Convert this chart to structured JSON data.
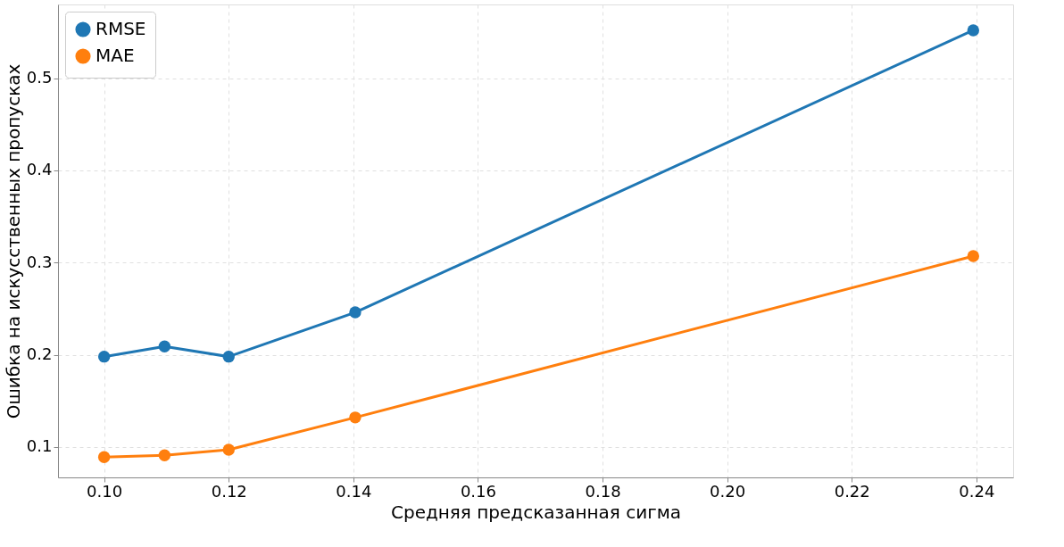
{
  "chart_data": {
    "type": "line",
    "xlabel": "Средняя предсказанная сигма",
    "ylabel": "Ошибка на искусственных пропусках",
    "x": [
      0.1,
      0.1097,
      0.12,
      0.1403,
      0.2395
    ],
    "series": [
      {
        "name": "RMSE",
        "color": "#1f77b4",
        "values": [
          0.198,
          0.209,
          0.198,
          0.246,
          0.552
        ]
      },
      {
        "name": "MAE",
        "color": "#ff7f0e",
        "values": [
          0.089,
          0.091,
          0.097,
          0.132,
          0.307
        ]
      }
    ],
    "xlim": [
      0.0926,
      0.2459
    ],
    "xticks": [
      {
        "value": 0.1,
        "label": "0.10"
      },
      0.12,
      0.14,
      0.16,
      0.18,
      {
        "value": 0.2,
        "label": "0.20"
      },
      0.22,
      0.24
    ],
    "ylim": [
      0.067,
      0.58
    ],
    "yticks": [
      0.1,
      0.2,
      0.3,
      0.4,
      0.5
    ],
    "grid": true,
    "legend": "top left",
    "marker": "circle",
    "line_style": "solid"
  }
}
